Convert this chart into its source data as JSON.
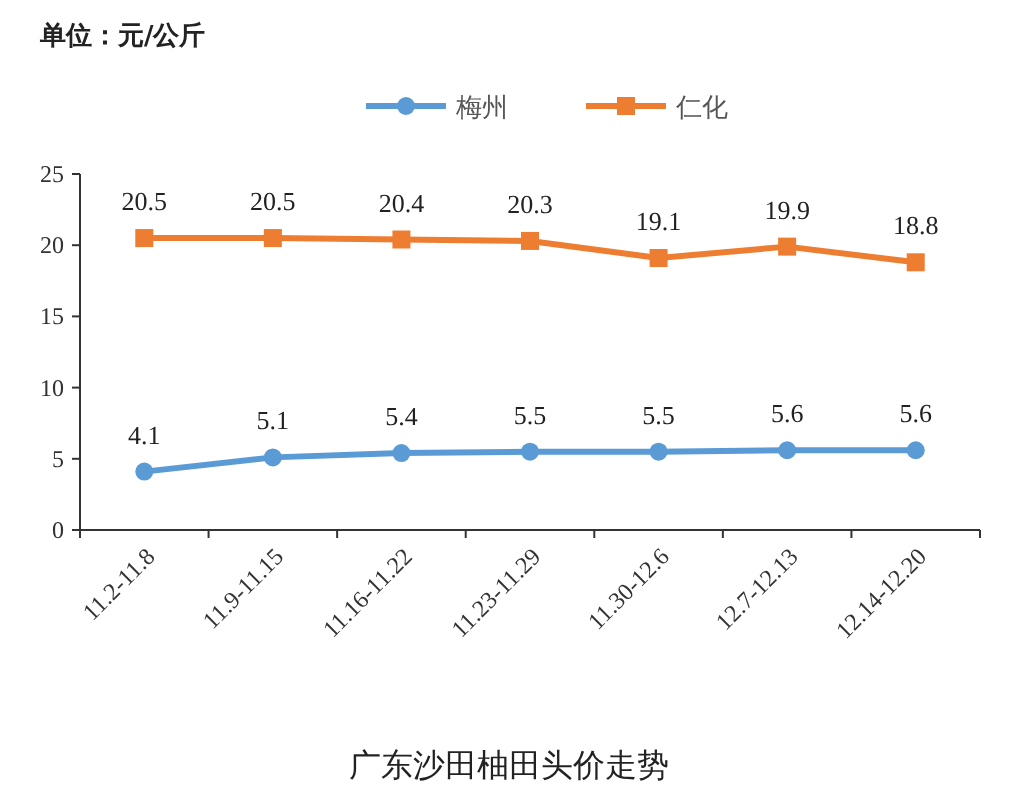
{
  "chart_data": {
    "type": "line",
    "title": "广东沙田柚田头价走势",
    "ylabel": "单位：元/公斤",
    "categories": [
      "11.2-11.8",
      "11.9-11.15",
      "11.16-11.22",
      "11.23-11.29",
      "11.30-12.6",
      "12.7-12.13",
      "12.14-12.20"
    ],
    "series": [
      {
        "name": "梅州",
        "color": "#5b9bd5",
        "marker": "circle",
        "values": [
          4.1,
          5.1,
          5.4,
          5.5,
          5.5,
          5.6,
          5.6
        ]
      },
      {
        "name": "仁化",
        "color": "#ed7d31",
        "marker": "square",
        "values": [
          20.5,
          20.5,
          20.4,
          20.3,
          19.1,
          19.9,
          18.8
        ]
      }
    ],
    "ylim": [
      0,
      25
    ],
    "yticks": [
      0,
      5,
      10,
      15,
      20,
      25
    ],
    "grid": false,
    "legend": "top",
    "data_labels": true
  }
}
